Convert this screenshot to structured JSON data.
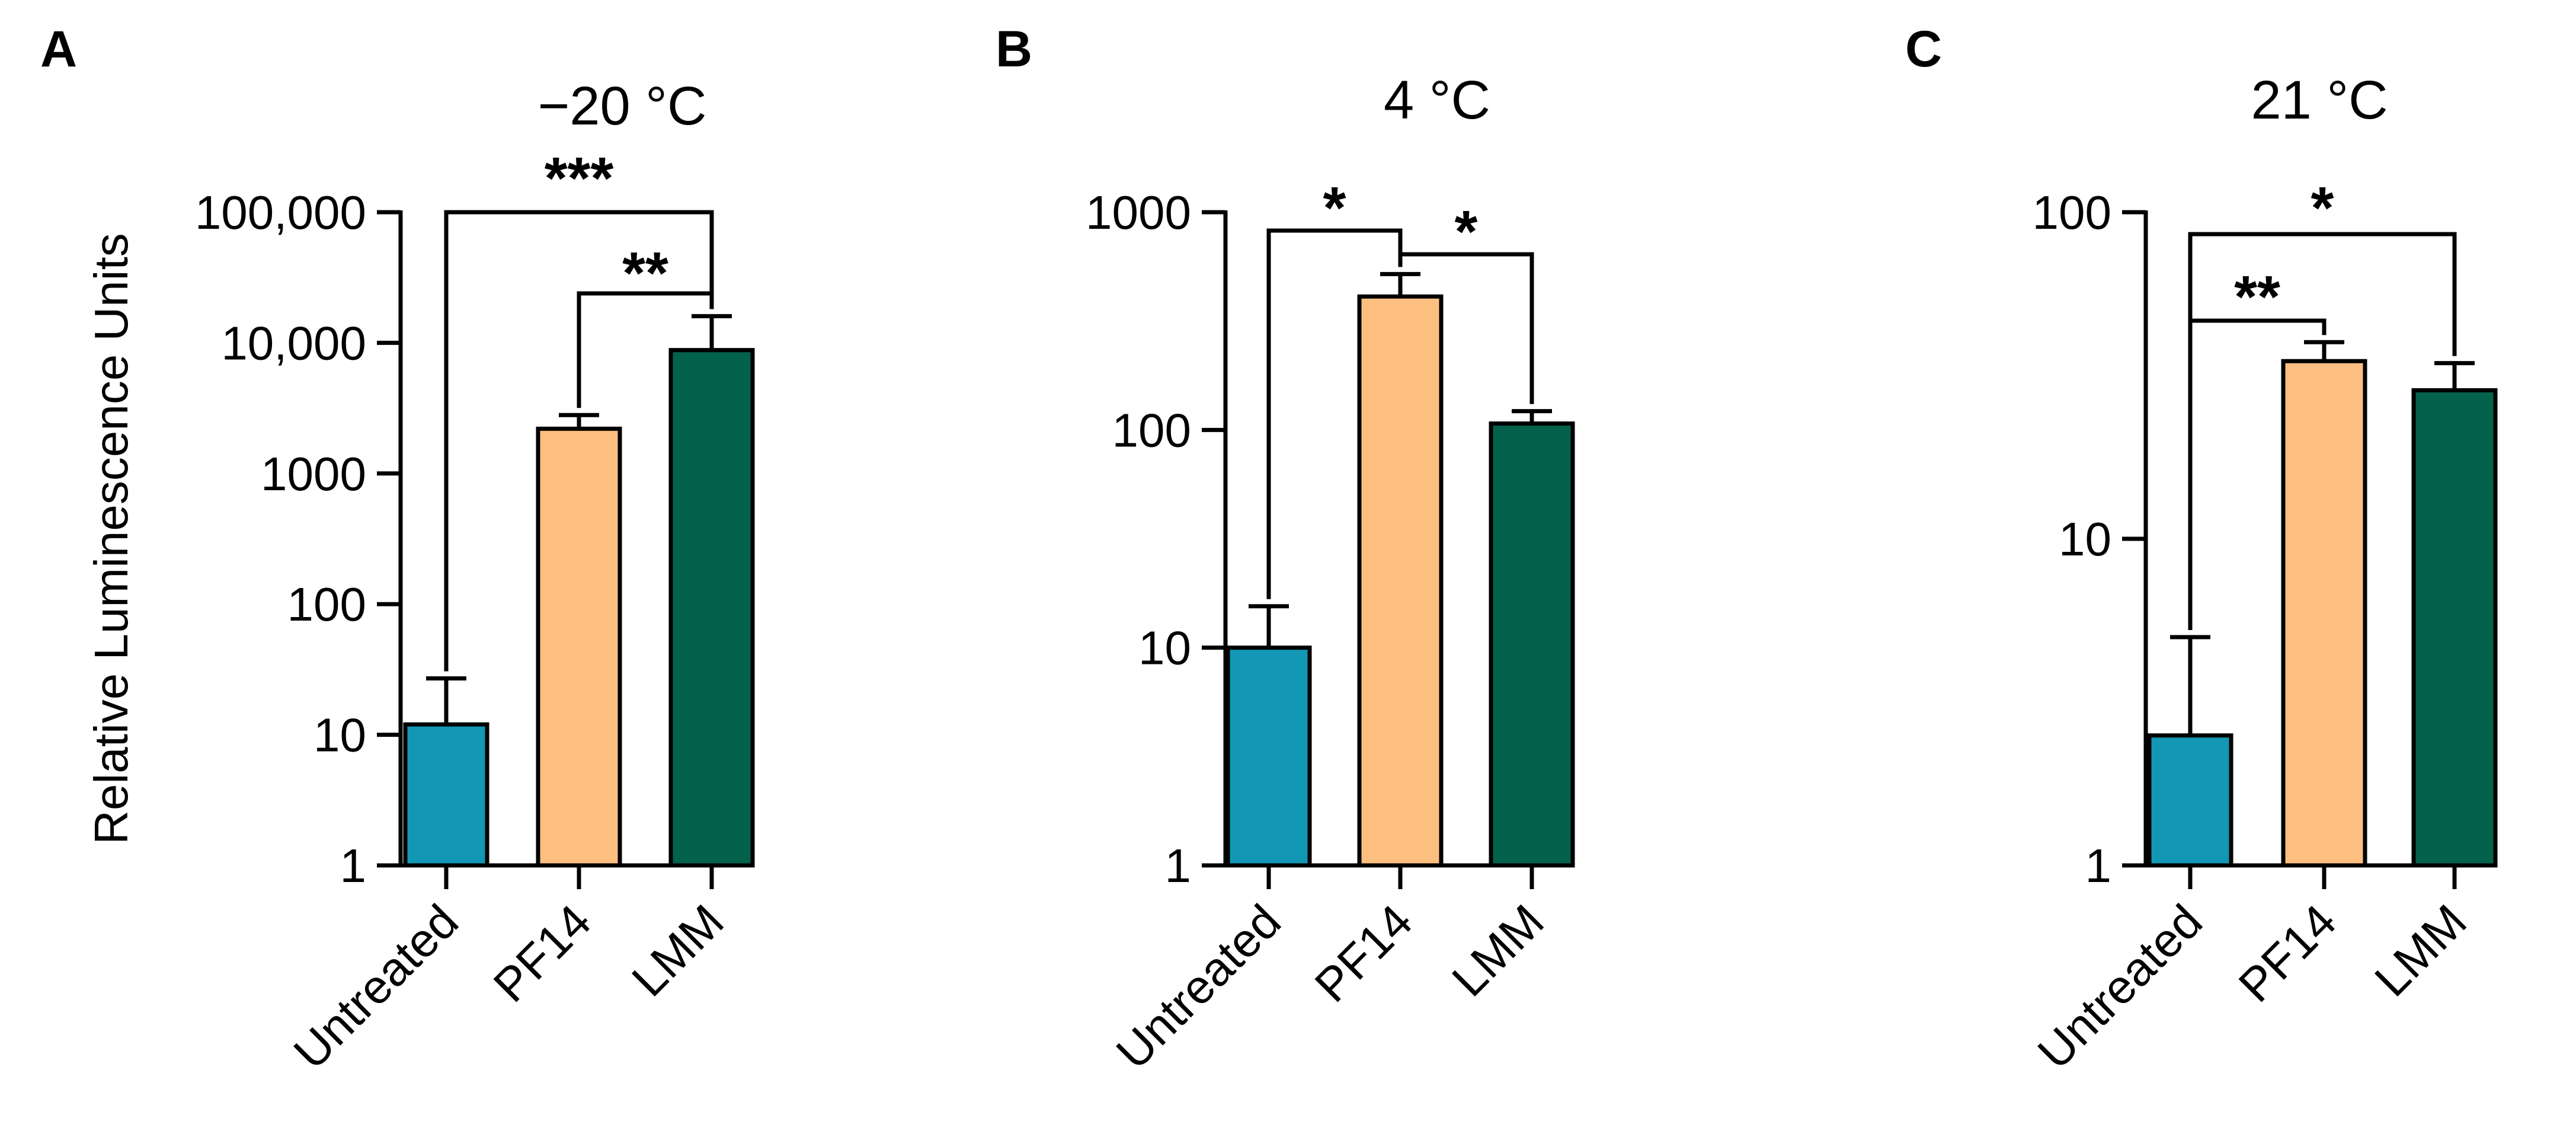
{
  "colors": {
    "untreated": "#1298b4",
    "pf14": "#fdbf80",
    "lmm": "#02624b",
    "axis": "#000000"
  },
  "chart_data": [
    {
      "panel": "A",
      "type": "bar",
      "title": "−20 °C",
      "ylabel": "Relative Luminescence Units",
      "yscale": "log",
      "ylim": [
        1,
        100000
      ],
      "yticks": [
        1,
        10,
        100,
        1000,
        10000,
        100000
      ],
      "ytick_labels": [
        "1",
        "10",
        "100",
        "1000",
        "10,000",
        "100,000"
      ],
      "categories": [
        "Untreated",
        "PF14",
        "LMM"
      ],
      "values": [
        12,
        2200,
        8800
      ],
      "errors_upper": [
        27,
        2800,
        16000
      ],
      "significance": [
        {
          "from": 0,
          "to": 2,
          "label": "***"
        },
        {
          "from": 1,
          "to": 2,
          "label": "**"
        }
      ]
    },
    {
      "panel": "B",
      "type": "bar",
      "title": "4 °C",
      "ylabel": "",
      "yscale": "log",
      "ylim": [
        1,
        1000
      ],
      "yticks": [
        1,
        10,
        100,
        1000
      ],
      "ytick_labels": [
        "1",
        "10",
        "100",
        "1000"
      ],
      "categories": [
        "Untreated",
        "PF14",
        "LMM"
      ],
      "values": [
        10,
        410,
        107
      ],
      "errors_upper": [
        15.5,
        520,
        122
      ],
      "significance": [
        {
          "from": 0,
          "to": 1,
          "label": "*"
        },
        {
          "from": 1,
          "to": 2,
          "label": "*"
        }
      ]
    },
    {
      "panel": "C",
      "type": "bar",
      "title": "21 °C",
      "ylabel": "",
      "yscale": "log",
      "ylim": [
        1,
        100
      ],
      "yticks": [
        1,
        10,
        100
      ],
      "ytick_labels": [
        "1",
        "10",
        "100"
      ],
      "categories": [
        "Untreated",
        "PF14",
        "LMM"
      ],
      "values": [
        2.5,
        35,
        28.5
      ],
      "errors_upper": [
        5,
        40,
        34.5
      ],
      "significance": [
        {
          "from": 0,
          "to": 2,
          "label": "*"
        },
        {
          "from": 0,
          "to": 1,
          "label": "**"
        }
      ]
    }
  ]
}
